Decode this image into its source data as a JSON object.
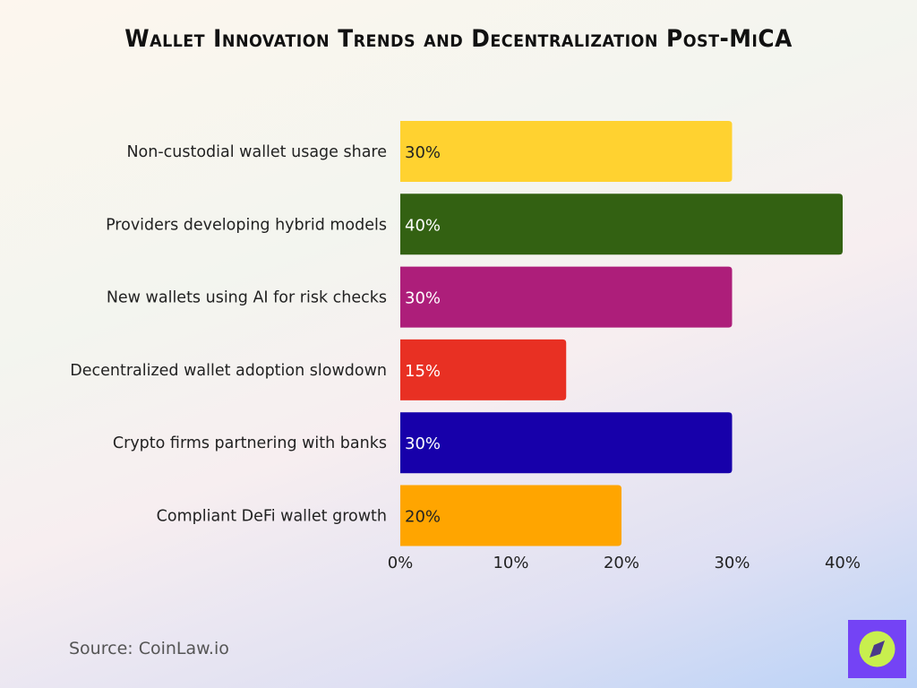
{
  "chart_data": {
    "type": "bar",
    "orientation": "horizontal",
    "title": "Wallet Innovation Trends and Decentralization Post-MiCA",
    "categories": [
      "Non-custodial wallet usage share",
      "Providers developing hybrid models",
      "New wallets using AI for risk checks",
      "Decentralized wallet adoption slowdown",
      "Crypto firms partnering with banks",
      "Compliant DeFi wallet growth"
    ],
    "values": [
      30,
      40,
      30,
      15,
      30,
      20
    ],
    "data_labels": [
      "30%",
      "40%",
      "30%",
      "15%",
      "30%",
      "20%"
    ],
    "colors": [
      "#ffd230",
      "#336112",
      "#ad1e7a",
      "#e83023",
      "#1700aa",
      "#ffa500"
    ],
    "label_colors": [
      "#222222",
      "#ffffff",
      "#ffffff",
      "#ffffff",
      "#ffffff",
      "#222222"
    ],
    "xlim": [
      0,
      40
    ],
    "xticks": [
      0,
      10,
      20,
      30,
      40
    ],
    "xtick_labels": [
      "0%",
      "10%",
      "20%",
      "30%",
      "40%"
    ],
    "grid": false,
    "legend": "none"
  },
  "source": "Source: CoinLaw.io",
  "logo": {
    "icon": "compass-icon",
    "colors": [
      "#7443f5",
      "#c8ef4e"
    ]
  }
}
